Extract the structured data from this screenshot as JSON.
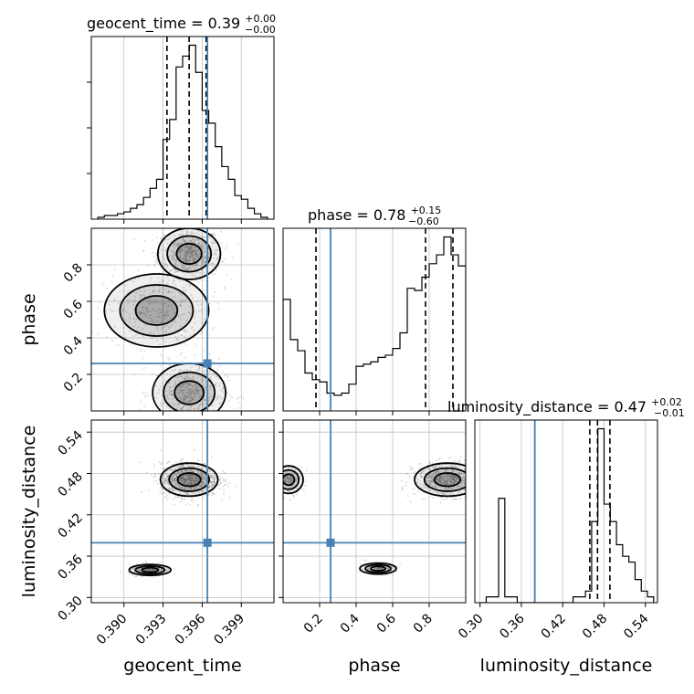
{
  "chart_data": {
    "type": "corner",
    "colors": {
      "truth": "#4682b4",
      "line": "#000000",
      "grid": "#c0c0c0",
      "points": "#8c8c8c"
    },
    "grid": true,
    "params": [
      {
        "name": "geocent_time",
        "range": [
          0.3875,
          0.4015
        ],
        "ticks": [
          "0.390",
          "0.393",
          "0.396",
          "0.399"
        ],
        "tick_values": [
          0.39,
          0.393,
          0.396,
          0.399
        ],
        "title": {
          "label": "geocent_time = 0.39",
          "plus": "+0.00",
          "minus": "−0.00"
        },
        "truth": 0.3964,
        "quantiles": [
          0.3933,
          0.395,
          0.3963
        ],
        "hist_x": [
          0.388,
          0.3885,
          0.389,
          0.3895,
          0.39,
          0.3905,
          0.391,
          0.3915,
          0.392,
          0.3925,
          0.393,
          0.3935,
          0.394,
          0.3945,
          0.395,
          0.3955,
          0.396,
          0.3965,
          0.397,
          0.3975,
          0.398,
          0.3985,
          0.399,
          0.3995,
          0.4,
          0.4005,
          0.401
        ],
        "hist_y": [
          0.01,
          0.02,
          0.02,
          0.03,
          0.04,
          0.06,
          0.08,
          0.12,
          0.17,
          0.22,
          0.44,
          0.55,
          0.84,
          0.9,
          0.96,
          0.81,
          0.6,
          0.53,
          0.4,
          0.29,
          0.22,
          0.13,
          0.11,
          0.06,
          0.03,
          0.01
        ]
      },
      {
        "name": "phase",
        "range": [
          0.0,
          1.0
        ],
        "ticks": [
          "0.2",
          "0.4",
          "0.6",
          "0.8"
        ],
        "tick_values": [
          0.2,
          0.4,
          0.6,
          0.8
        ],
        "title": {
          "label": "phase = 0.78",
          "plus": "+0.15",
          "minus": "−0.60"
        },
        "truth": 0.26,
        "quantiles": [
          0.18,
          0.78,
          0.93
        ],
        "hist_x": [
          0.0,
          0.04,
          0.08,
          0.12,
          0.16,
          0.2,
          0.24,
          0.28,
          0.32,
          0.36,
          0.4,
          0.44,
          0.48,
          0.52,
          0.56,
          0.6,
          0.64,
          0.68,
          0.72,
          0.76,
          0.8,
          0.84,
          0.88,
          0.92,
          0.96,
          1.0
        ],
        "hist_y": [
          0.5,
          0.32,
          0.27,
          0.17,
          0.14,
          0.13,
          0.08,
          0.07,
          0.08,
          0.12,
          0.2,
          0.21,
          0.22,
          0.24,
          0.25,
          0.28,
          0.35,
          0.55,
          0.54,
          0.6,
          0.66,
          0.7,
          0.78,
          0.7,
          0.65
        ]
      },
      {
        "name": "luminosity_distance",
        "range": [
          0.2925,
          0.5575
        ],
        "ticks": [
          "0.30",
          "0.36",
          "0.42",
          "0.48",
          "0.54"
        ],
        "tick_values": [
          0.3,
          0.36,
          0.42,
          0.48,
          0.54
        ],
        "title": {
          "label": "luminosity_distance = 0.47",
          "plus": "+0.02",
          "minus": "−0.01"
        },
        "truth": 0.3795,
        "quantiles": [
          0.4593,
          0.4705,
          0.4885
        ],
        "hist_x": [
          0.3,
          0.309,
          0.318,
          0.327,
          0.336,
          0.345,
          0.354,
          0.363,
          0.372,
          0.381,
          0.39,
          0.399,
          0.408,
          0.417,
          0.426,
          0.435,
          0.444,
          0.453,
          0.462,
          0.471,
          0.48,
          0.489,
          0.498,
          0.507,
          0.516,
          0.525,
          0.534,
          0.543,
          0.552
        ],
        "hist_y": [
          0.0,
          0.01,
          0.01,
          0.18,
          0.01,
          0.01,
          0.0,
          0.0,
          0.0,
          0.0,
          0.0,
          0.0,
          0.0,
          0.0,
          0.0,
          0.01,
          0.01,
          0.02,
          0.14,
          0.3,
          0.17,
          0.14,
          0.1,
          0.08,
          0.07,
          0.04,
          0.02,
          0.01
        ]
      }
    ],
    "pairs": [
      {
        "x": "geocent_time",
        "y": "phase",
        "y_ticks": [
          "0.2",
          "0.4",
          "0.6",
          "0.8"
        ],
        "clusters": [
          {
            "cx": 0.395,
            "cy": 0.86,
            "sx": 0.0012,
            "sy": 0.07,
            "n": 700
          },
          {
            "cx": 0.3925,
            "cy": 0.55,
            "sx": 0.002,
            "sy": 0.1,
            "n": 350
          },
          {
            "cx": 0.395,
            "cy": 0.1,
            "sx": 0.0014,
            "sy": 0.08,
            "n": 550
          }
        ]
      },
      {
        "x": "geocent_time",
        "y": "luminosity_distance",
        "y_ticks": [
          "0.30",
          "0.36",
          "0.42",
          "0.48",
          "0.54"
        ],
        "clusters": [
          {
            "cx": 0.395,
            "cy": 0.471,
            "sx": 0.0011,
            "sy": 0.012,
            "n": 1100
          },
          {
            "cx": 0.392,
            "cy": 0.34,
            "sx": 0.0008,
            "sy": 0.004,
            "n": 220
          }
        ]
      },
      {
        "x": "phase",
        "y": "luminosity_distance",
        "clusters": [
          {
            "cx": 0.9,
            "cy": 0.471,
            "sx": 0.09,
            "sy": 0.012,
            "n": 800
          },
          {
            "cx": 0.03,
            "cy": 0.471,
            "sx": 0.04,
            "sy": 0.01,
            "n": 250
          },
          {
            "cx": 0.52,
            "cy": 0.342,
            "sx": 0.05,
            "sy": 0.004,
            "n": 160
          }
        ]
      }
    ]
  }
}
